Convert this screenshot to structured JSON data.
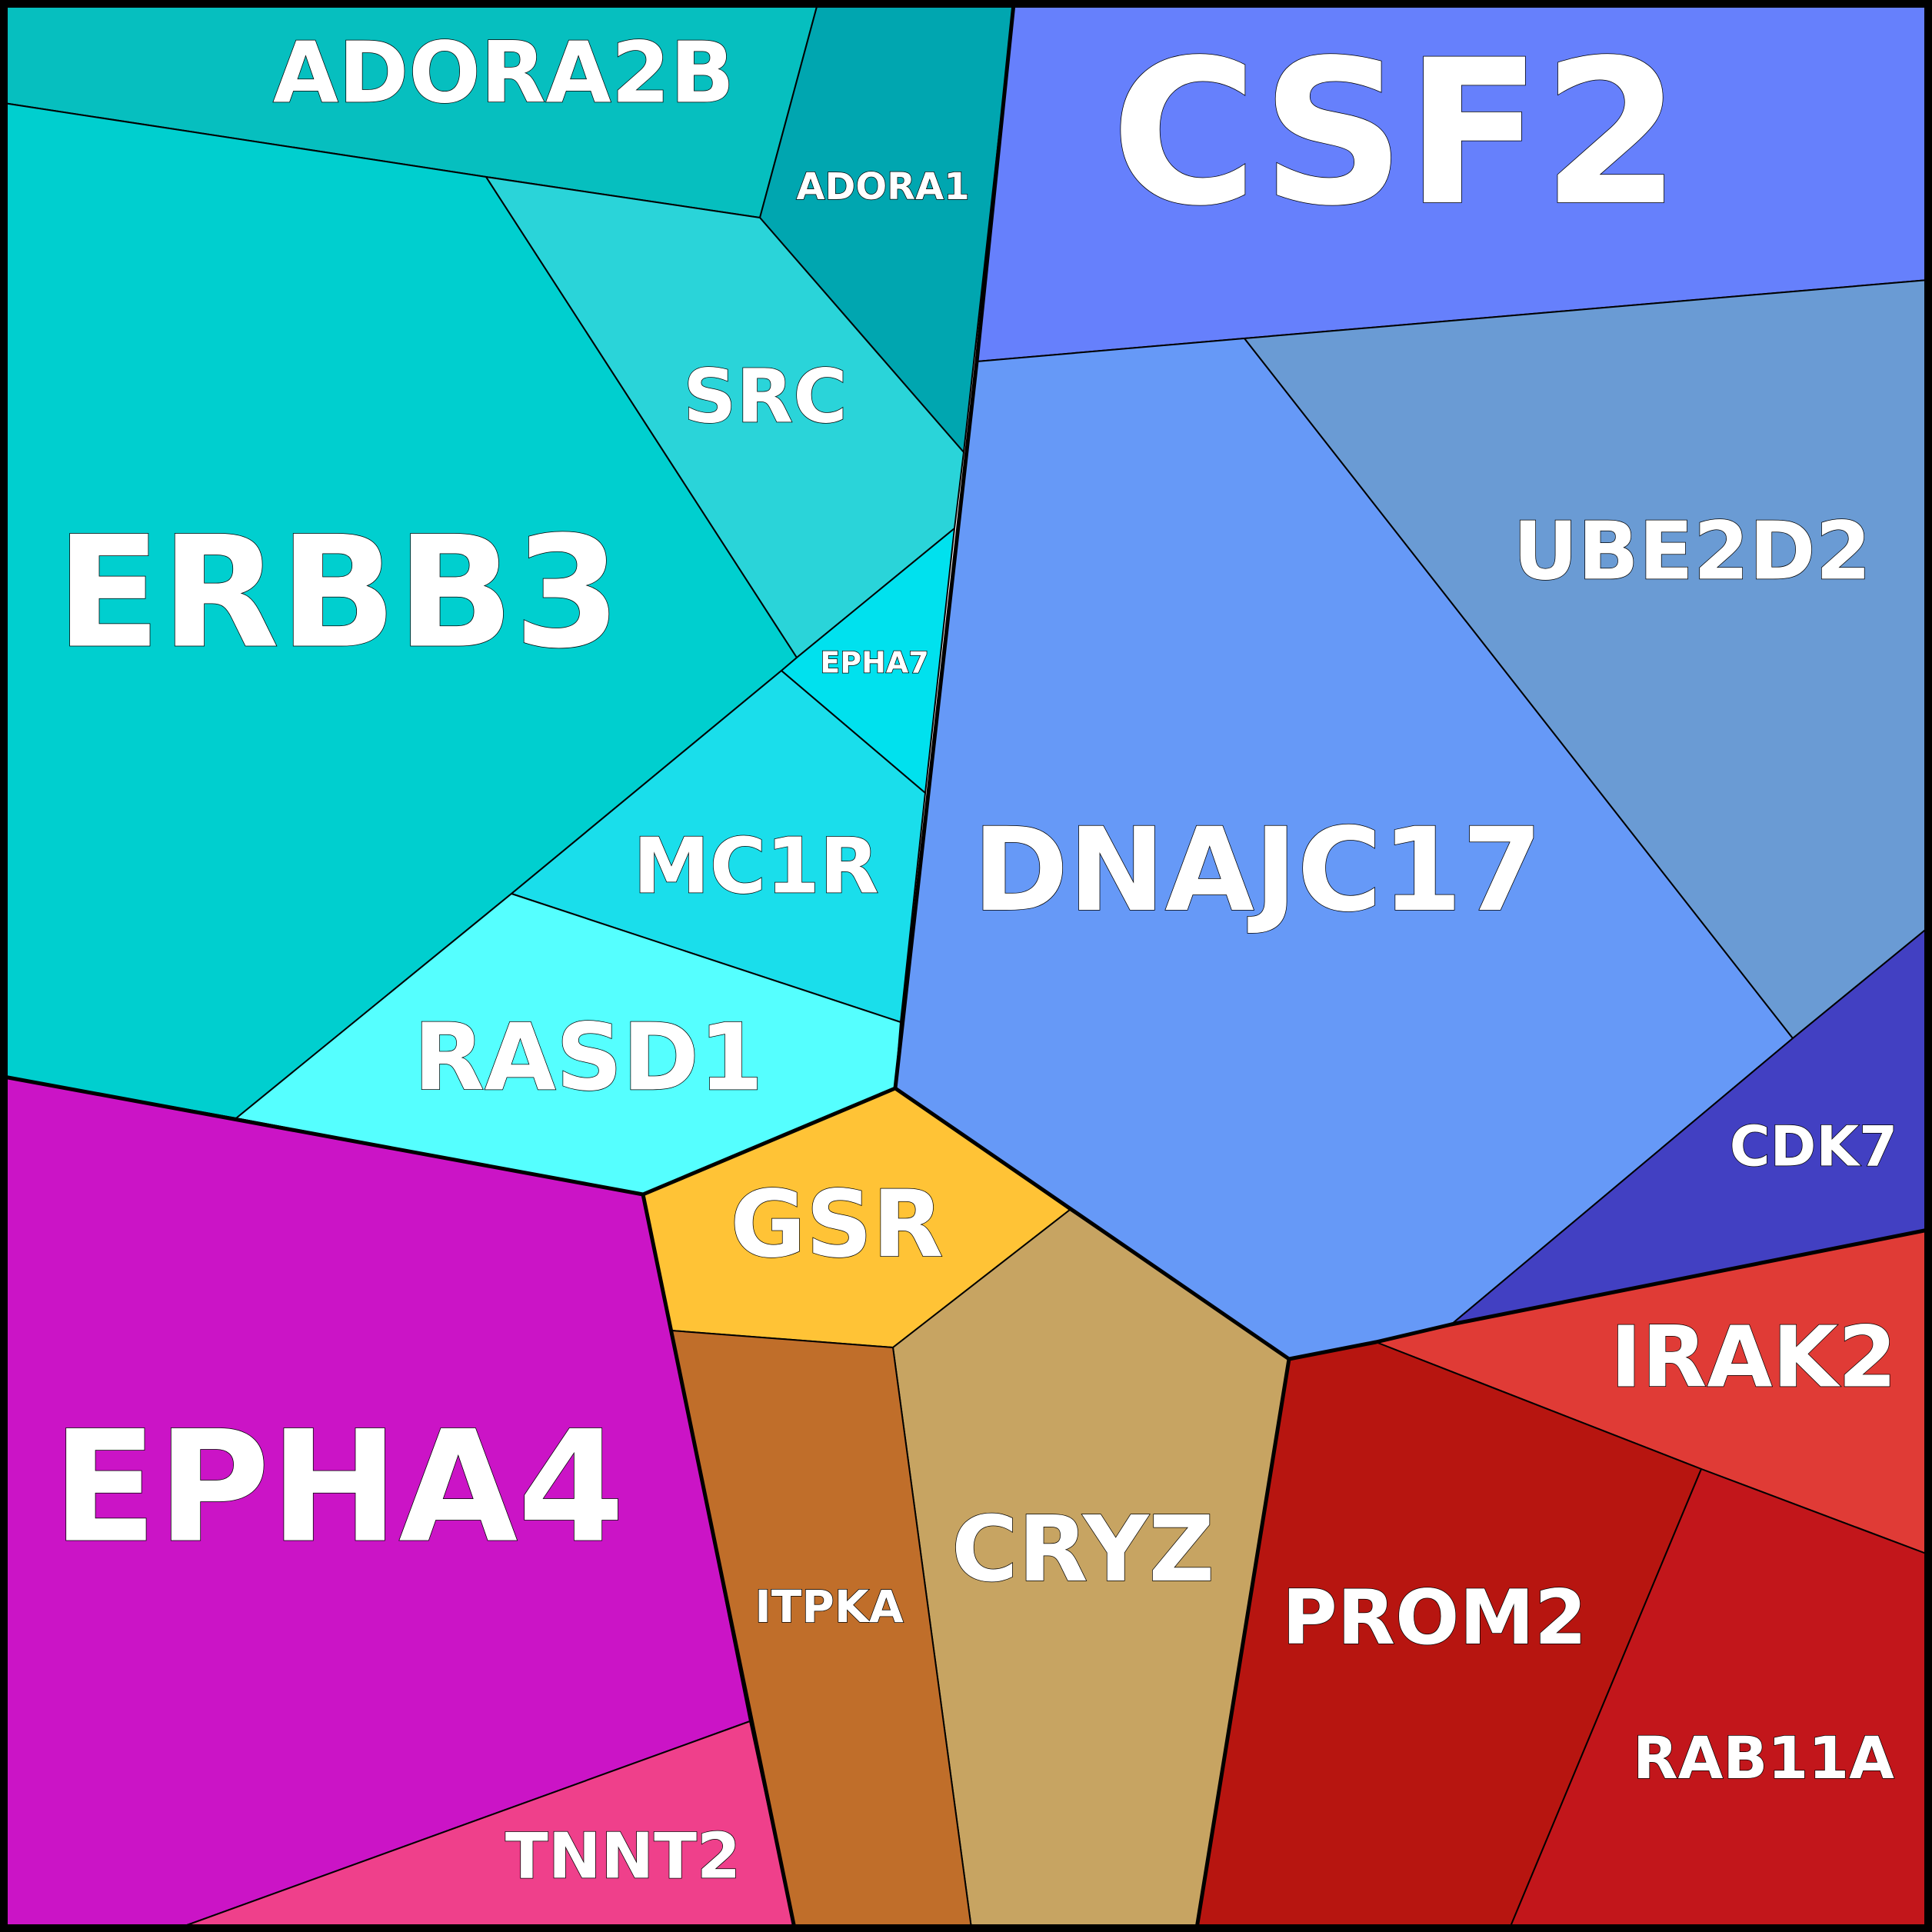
{
  "diagram": {
    "type": "voronoi-treemap",
    "cells": [
      {
        "id": "adora2b",
        "label": "ADORA2B",
        "color": "#06bfbf"
      },
      {
        "id": "adora1",
        "label": "ADORA1",
        "color": "#00a6b0"
      },
      {
        "id": "csf2",
        "label": "CSF2",
        "color": "#6680fc"
      },
      {
        "id": "erbb3",
        "label": "ERBB3",
        "color": "#00cfcf"
      },
      {
        "id": "src",
        "label": "SRC",
        "color": "#2ad4d9"
      },
      {
        "id": "epha7",
        "label": "EPHA7",
        "color": "#00e1ee"
      },
      {
        "id": "mc1r",
        "label": "MC1R",
        "color": "#1adeeb"
      },
      {
        "id": "rasd1",
        "label": "RASD1",
        "color": "#55ffff"
      },
      {
        "id": "dnajc17",
        "label": "DNAJC17",
        "color": "#6699f7"
      },
      {
        "id": "ube2d2",
        "label": "UBE2D2",
        "color": "#6a9bd4"
      },
      {
        "id": "cdk7",
        "label": "CDK7",
        "color": "#4240c2"
      },
      {
        "id": "gsr",
        "label": "GSR",
        "color": "#ffc336"
      },
      {
        "id": "cryz",
        "label": "CRYZ",
        "color": "#c7a462"
      },
      {
        "id": "itpka",
        "label": "ITPKA",
        "color": "#c06e2a"
      },
      {
        "id": "epha4",
        "label": "EPHA4",
        "color": "#cb14c6"
      },
      {
        "id": "tnnt2",
        "label": "TNNT2",
        "color": "#ef408b"
      },
      {
        "id": "irak2",
        "label": "IRAK2",
        "color": "#e03b36"
      },
      {
        "id": "prom2",
        "label": "PROM2",
        "color": "#b71510"
      },
      {
        "id": "rab11a",
        "label": "RAB11A",
        "color": "#c2161b"
      }
    ]
  }
}
